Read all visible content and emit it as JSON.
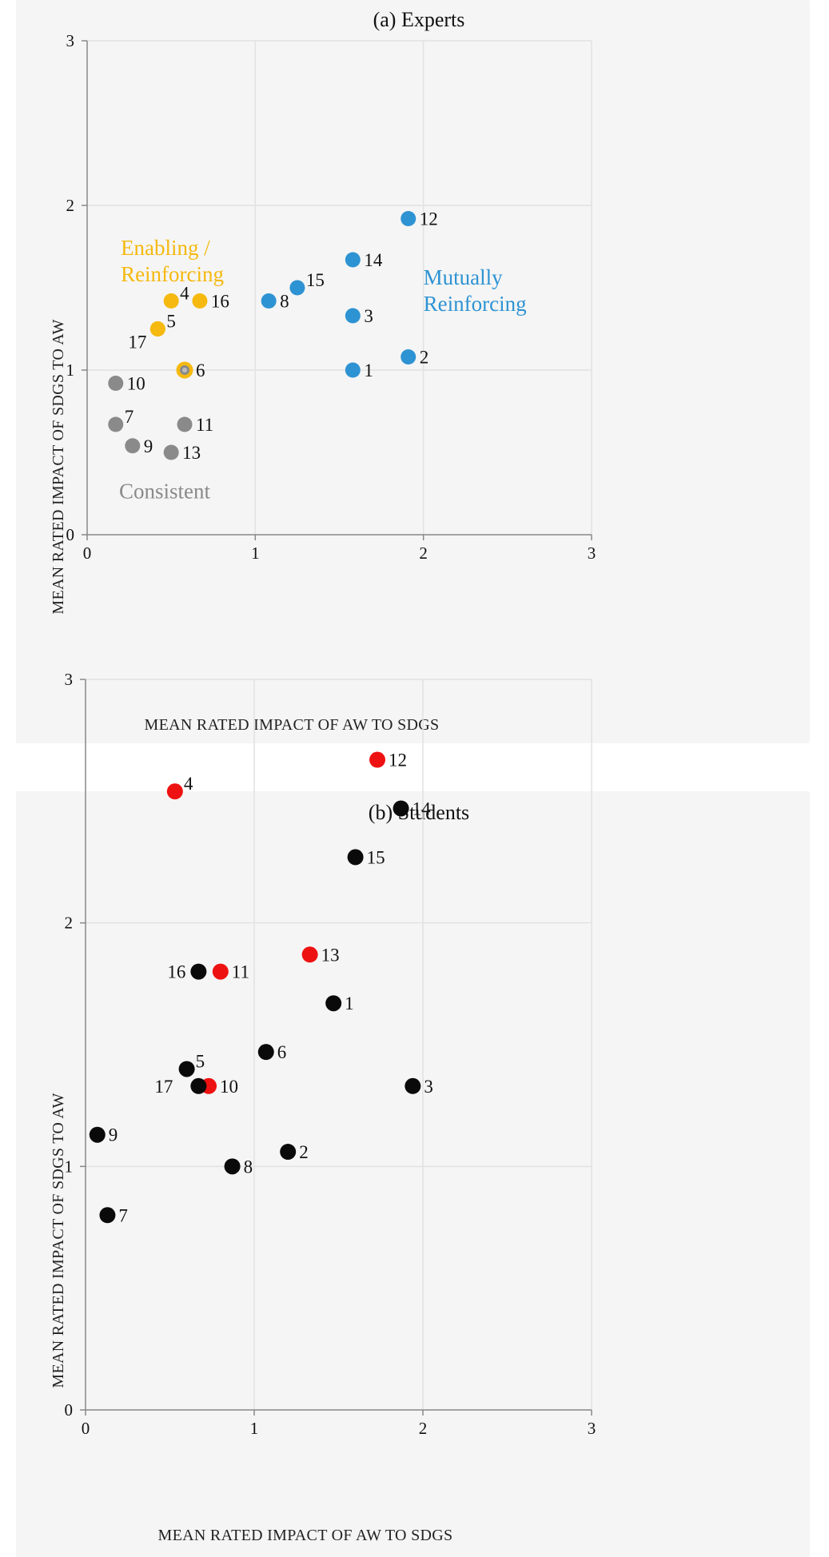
{
  "chart_data": [
    {
      "type": "scatter",
      "title": "(a) Experts",
      "xlabel": "MEAN RATED IMPACT OF AW TO SDGS",
      "ylabel": "MEAN RATED IMPACT OF SDGS TO AW",
      "xlim": [
        0,
        3
      ],
      "ylim": [
        0,
        3
      ],
      "xticks": [
        "0",
        "1",
        "2",
        "3"
      ],
      "yticks": [
        "0",
        "1",
        "2",
        "3"
      ],
      "grid": true,
      "colors": {
        "enabling": "#f5b90f",
        "mutual": "#2e93d3",
        "consistent": "#8a8a8a"
      },
      "region_labels": [
        {
          "lines": [
            "Enabling /",
            "Reinforcing"
          ],
          "color": "#f5b90f",
          "x": 0.2,
          "y": 1.7
        },
        {
          "lines": [
            "Mutually",
            "Reinforcing"
          ],
          "color": "#2e93d3",
          "x": 2.0,
          "y": 1.52
        },
        {
          "lines": [
            "Consistent"
          ],
          "color": "#8a8a8a",
          "x": 0.19,
          "y": 0.22
        }
      ],
      "points": [
        {
          "label": "1",
          "x": 1.58,
          "y": 1.0,
          "group": "mutual",
          "label_pos": "right"
        },
        {
          "label": "2",
          "x": 1.91,
          "y": 1.08,
          "group": "mutual",
          "label_pos": "right"
        },
        {
          "label": "3",
          "x": 1.58,
          "y": 1.33,
          "group": "mutual",
          "label_pos": "right"
        },
        {
          "label": "4",
          "x": 0.5,
          "y": 1.42,
          "group": "enabling",
          "label_pos": "right-up"
        },
        {
          "label": "5",
          "x": 0.42,
          "y": 1.25,
          "group": "enabling",
          "label_pos": "right-up"
        },
        {
          "label": "6",
          "x": 0.58,
          "y": 1.0,
          "group": "enabling-consistent",
          "label_pos": "right"
        },
        {
          "label": "7",
          "x": 0.17,
          "y": 0.67,
          "group": "consistent",
          "label_pos": "right-up"
        },
        {
          "label": "8",
          "x": 1.08,
          "y": 1.42,
          "group": "mutual",
          "label_pos": "right"
        },
        {
          "label": "9",
          "x": 0.27,
          "y": 0.54,
          "group": "consistent",
          "label_pos": "right"
        },
        {
          "label": "10",
          "x": 0.17,
          "y": 0.92,
          "group": "consistent",
          "label_pos": "right"
        },
        {
          "label": "11",
          "x": 0.58,
          "y": 0.67,
          "group": "consistent",
          "label_pos": "right"
        },
        {
          "label": "12",
          "x": 1.91,
          "y": 1.92,
          "group": "mutual",
          "label_pos": "right"
        },
        {
          "label": "13",
          "x": 0.5,
          "y": 0.5,
          "group": "consistent",
          "label_pos": "right"
        },
        {
          "label": "14",
          "x": 1.58,
          "y": 1.67,
          "group": "mutual",
          "label_pos": "right"
        },
        {
          "label": "15",
          "x": 1.25,
          "y": 1.5,
          "group": "mutual",
          "label_pos": "right-up"
        },
        {
          "label": "16",
          "x": 0.67,
          "y": 1.42,
          "group": "enabling",
          "label_pos": "right"
        },
        {
          "label": "17",
          "x": 0.42,
          "y": 1.25,
          "group": "enabling",
          "label_pos": "left-down"
        }
      ]
    },
    {
      "type": "scatter",
      "title": "(b) Students",
      "xlabel": "MEAN RATED IMPACT OF AW TO SDGS",
      "ylabel": "MEAN RATED IMPACT OF SDGS TO AW",
      "xlim": [
        0,
        3
      ],
      "ylim": [
        0,
        3
      ],
      "xticks": [
        "0",
        "1",
        "2",
        "3"
      ],
      "yticks": [
        "0",
        "1",
        "2",
        "3"
      ],
      "grid": true,
      "colors": {
        "red": "#ee1111",
        "black": "#0a0a0a"
      },
      "points": [
        {
          "label": "1",
          "x": 1.47,
          "y": 1.67,
          "group": "black",
          "label_pos": "right"
        },
        {
          "label": "2",
          "x": 1.2,
          "y": 1.06,
          "group": "black",
          "label_pos": "right"
        },
        {
          "label": "3",
          "x": 1.94,
          "y": 1.33,
          "group": "black",
          "label_pos": "right"
        },
        {
          "label": "4",
          "x": 0.53,
          "y": 2.54,
          "group": "red",
          "label_pos": "right-up"
        },
        {
          "label": "5",
          "x": 0.6,
          "y": 1.4,
          "group": "black",
          "label_pos": "right-up"
        },
        {
          "label": "6",
          "x": 1.07,
          "y": 1.47,
          "group": "black",
          "label_pos": "right"
        },
        {
          "label": "7",
          "x": 0.13,
          "y": 0.8,
          "group": "black",
          "label_pos": "right"
        },
        {
          "label": "8",
          "x": 0.87,
          "y": 1.0,
          "group": "black",
          "label_pos": "right"
        },
        {
          "label": "9",
          "x": 0.07,
          "y": 1.13,
          "group": "black",
          "label_pos": "right"
        },
        {
          "label": "10",
          "x": 0.73,
          "y": 1.33,
          "group": "red",
          "label_pos": "right"
        },
        {
          "label": "11",
          "x": 0.8,
          "y": 1.8,
          "group": "red",
          "label_pos": "right"
        },
        {
          "label": "12",
          "x": 1.73,
          "y": 2.67,
          "group": "red",
          "label_pos": "right"
        },
        {
          "label": "13",
          "x": 1.33,
          "y": 1.87,
          "group": "red",
          "label_pos": "right"
        },
        {
          "label": "14",
          "x": 1.87,
          "y": 2.47,
          "group": "black",
          "label_pos": "right"
        },
        {
          "label": "15",
          "x": 1.6,
          "y": 2.27,
          "group": "black",
          "label_pos": "right"
        },
        {
          "label": "16",
          "x": 0.67,
          "y": 1.8,
          "group": "black",
          "label_pos": "left"
        },
        {
          "label": "17",
          "x": 0.67,
          "y": 1.33,
          "group": "black",
          "label_pos": "left-far"
        }
      ]
    }
  ]
}
